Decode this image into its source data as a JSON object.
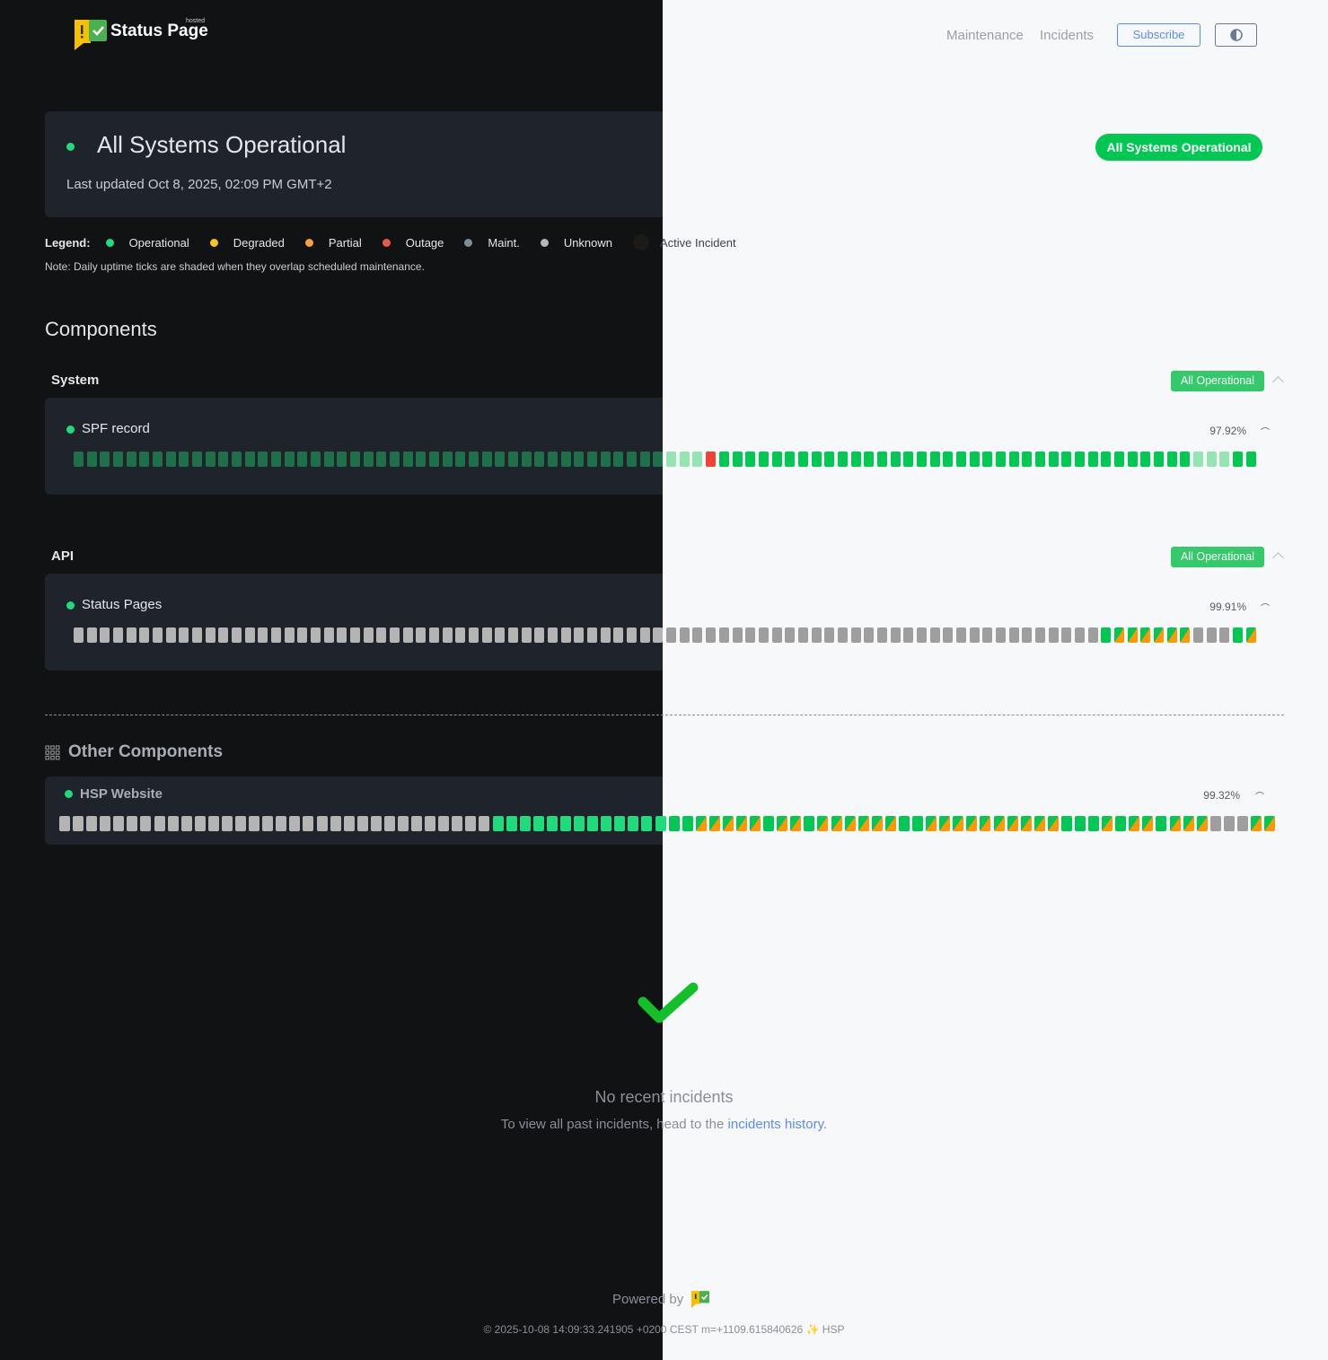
{
  "header": {
    "brand": "Status Page",
    "brand_tag": "hosted",
    "nav": [
      "Maintenance",
      "Incidents"
    ],
    "subscribe_label": "Subscribe",
    "theme_toggle_icon": "half-circle-icon"
  },
  "banner": {
    "title": "All Systems Operational",
    "last_updated": "Last updated Oct 8, 2025, 02:09 PM GMT+2",
    "status_pill": "All Systems Operational"
  },
  "legend": {
    "label": "Legend:",
    "items": [
      {
        "label": "Operational",
        "color": "#1edc7c"
      },
      {
        "label": "Degraded",
        "color": "#f5c518"
      },
      {
        "label": "Partial",
        "color": "#f7a23b"
      },
      {
        "label": "Outage",
        "color": "#f0574b"
      },
      {
        "label": "Maint.",
        "color": "#7f8c96"
      },
      {
        "label": "Unknown",
        "color": "#b8b8b8"
      },
      {
        "label": "Active Incident",
        "color": "#1d1b18"
      }
    ],
    "note": "Note: Daily uptime ticks are shaded when they overlap scheduled maintenance."
  },
  "components_title": "Components",
  "groups": [
    {
      "name": "System",
      "status": "All Operational",
      "components": [
        {
          "name": "SPF record",
          "uptime": "97.92%",
          "runs": [
            {
              "status": "op-maint",
              "days": 48
            },
            {
              "status": "outage",
              "days": 1
            },
            {
              "status": "op",
              "days": 36
            },
            {
              "status": "op-maint",
              "days": 3
            },
            {
              "status": "op",
              "days": 2
            }
          ]
        }
      ]
    },
    {
      "name": "API",
      "status": "All Operational",
      "components": [
        {
          "name": "Status Pages",
          "uptime": "99.91%",
          "runs": [
            {
              "status": "unknown",
              "days": 78
            },
            {
              "status": "op",
              "days": 1
            },
            {
              "status": "partial",
              "days": 6
            },
            {
              "status": "unknown",
              "days": 3
            },
            {
              "status": "op",
              "days": 1
            },
            {
              "status": "partial",
              "days": 1
            }
          ]
        }
      ]
    }
  ],
  "other": {
    "title": "Other Components",
    "components": [
      {
        "name": "HSP Website",
        "uptime": "99.32%",
        "runs": [
          {
            "status": "unknown",
            "days": 32
          },
          {
            "status": "op",
            "days": 15
          },
          {
            "status": "partial",
            "days": 5
          },
          {
            "status": "op",
            "days": 1
          },
          {
            "status": "partial",
            "days": 2
          },
          {
            "status": "op",
            "days": 1
          },
          {
            "status": "partial",
            "days": 6
          },
          {
            "status": "op",
            "days": 2
          },
          {
            "status": "partial",
            "days": 10
          },
          {
            "status": "op",
            "days": 3
          },
          {
            "status": "partial",
            "days": 1
          },
          {
            "status": "op",
            "days": 1
          },
          {
            "status": "partial",
            "days": 2
          },
          {
            "status": "op",
            "days": 1
          },
          {
            "status": "partial",
            "days": 3
          },
          {
            "status": "unknown",
            "days": 3
          },
          {
            "status": "partial",
            "days": 2
          }
        ]
      }
    ]
  },
  "incidents": {
    "title": "No recent incidents",
    "text": "To view all past incidents, head to the ",
    "link": "incidents history",
    "end": "."
  },
  "footer": {
    "powered_by": "Powered by",
    "build": "© 2025-10-08 14:09:33.241905 +0200 CEST m=+1109.615840626 ✨ HSP"
  }
}
